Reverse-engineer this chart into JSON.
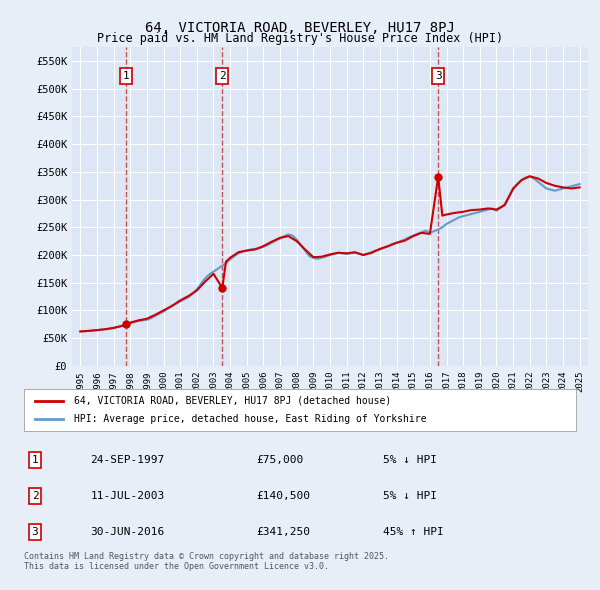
{
  "title": "64, VICTORIA ROAD, BEVERLEY, HU17 8PJ",
  "subtitle": "Price paid vs. HM Land Registry's House Price Index (HPI)",
  "legend_property": "64, VICTORIA ROAD, BEVERLEY, HU17 8PJ (detached house)",
  "legend_hpi": "HPI: Average price, detached house, East Riding of Yorkshire",
  "footer": "Contains HM Land Registry data © Crown copyright and database right 2025.\nThis data is licensed under the Open Government Licence v3.0.",
  "transactions": [
    {
      "num": 1,
      "date": "24-SEP-1997",
      "price": 75000,
      "pct": "5%",
      "dir": "↓",
      "year": 1997.73
    },
    {
      "num": 2,
      "date": "11-JUL-2003",
      "price": 140500,
      "pct": "5%",
      "dir": "↓",
      "year": 2003.53
    },
    {
      "num": 3,
      "date": "30-JUN-2016",
      "price": 341250,
      "pct": "45%",
      "dir": "↑",
      "year": 2016.5
    }
  ],
  "hpi_data": {
    "years": [
      1995.0,
      1995.25,
      1995.5,
      1995.75,
      1996.0,
      1996.25,
      1996.5,
      1996.75,
      1997.0,
      1997.25,
      1997.5,
      1997.75,
      1998.0,
      1998.25,
      1998.5,
      1998.75,
      1999.0,
      1999.25,
      1999.5,
      1999.75,
      2000.0,
      2000.25,
      2000.5,
      2000.75,
      2001.0,
      2001.25,
      2001.5,
      2001.75,
      2002.0,
      2002.25,
      2002.5,
      2002.75,
      2003.0,
      2003.25,
      2003.5,
      2003.75,
      2004.0,
      2004.25,
      2004.5,
      2004.75,
      2005.0,
      2005.25,
      2005.5,
      2005.75,
      2006.0,
      2006.25,
      2006.5,
      2006.75,
      2007.0,
      2007.25,
      2007.5,
      2007.75,
      2008.0,
      2008.25,
      2008.5,
      2008.75,
      2009.0,
      2009.25,
      2009.5,
      2009.75,
      2010.0,
      2010.25,
      2010.5,
      2010.75,
      2011.0,
      2011.25,
      2011.5,
      2011.75,
      2012.0,
      2012.25,
      2012.5,
      2012.75,
      2013.0,
      2013.25,
      2013.5,
      2013.75,
      2014.0,
      2014.25,
      2014.5,
      2014.75,
      2015.0,
      2015.25,
      2015.5,
      2015.75,
      2016.0,
      2016.25,
      2016.5,
      2016.75,
      2017.0,
      2017.25,
      2017.5,
      2017.75,
      2018.0,
      2018.25,
      2018.5,
      2018.75,
      2019.0,
      2019.25,
      2019.5,
      2019.75,
      2020.0,
      2020.25,
      2020.5,
      2020.75,
      2021.0,
      2021.25,
      2021.5,
      2021.75,
      2022.0,
      2022.25,
      2022.5,
      2022.75,
      2023.0,
      2023.25,
      2023.5,
      2023.75,
      2024.0,
      2024.25,
      2024.5,
      2024.75,
      2025.0
    ],
    "values": [
      62000,
      62500,
      63000,
      63500,
      64000,
      65000,
      66000,
      67000,
      68000,
      70000,
      72000,
      74500,
      77000,
      79000,
      81000,
      82000,
      83000,
      86000,
      90000,
      94000,
      98000,
      103000,
      108000,
      112000,
      116000,
      120000,
      124000,
      130000,
      138000,
      148000,
      158000,
      165000,
      170000,
      175000,
      180000,
      185000,
      192000,
      198000,
      203000,
      206000,
      208000,
      210000,
      211000,
      212000,
      215000,
      218000,
      222000,
      226000,
      230000,
      234000,
      237000,
      235000,
      228000,
      218000,
      208000,
      198000,
      195000,
      193000,
      195000,
      197000,
      200000,
      202000,
      204000,
      203000,
      202000,
      203000,
      204000,
      202000,
      200000,
      202000,
      205000,
      208000,
      210000,
      213000,
      216000,
      220000,
      222000,
      225000,
      228000,
      232000,
      235000,
      238000,
      241000,
      244000,
      240000,
      243000,
      246000,
      250000,
      256000,
      260000,
      264000,
      268000,
      270000,
      272000,
      274000,
      276000,
      278000,
      280000,
      282000,
      284000,
      280000,
      285000,
      292000,
      305000,
      318000,
      328000,
      335000,
      340000,
      342000,
      338000,
      332000,
      326000,
      320000,
      318000,
      316000,
      318000,
      320000,
      322000,
      324000,
      326000,
      328000
    ]
  },
  "property_data": {
    "years": [
      1995.0,
      1995.5,
      1996.0,
      1996.5,
      1997.0,
      1997.5,
      1997.73,
      1997.9,
      1998.0,
      1998.5,
      1999.0,
      1999.5,
      2000.0,
      2000.5,
      2001.0,
      2001.5,
      2002.0,
      2002.5,
      2003.0,
      2003.53,
      2003.75,
      2004.0,
      2004.5,
      2005.0,
      2005.5,
      2006.0,
      2006.5,
      2007.0,
      2007.5,
      2008.0,
      2008.5,
      2009.0,
      2009.5,
      2010.0,
      2010.5,
      2011.0,
      2011.5,
      2012.0,
      2012.5,
      2013.0,
      2013.5,
      2014.0,
      2014.5,
      2015.0,
      2015.5,
      2016.0,
      2016.5,
      2016.75,
      2017.0,
      2017.5,
      2018.0,
      2018.5,
      2019.0,
      2019.5,
      2020.0,
      2020.5,
      2021.0,
      2021.5,
      2022.0,
      2022.5,
      2023.0,
      2023.5,
      2024.0,
      2024.5,
      2025.0
    ],
    "values": [
      62000,
      63000,
      64500,
      66000,
      68500,
      72000,
      75000,
      76000,
      78000,
      82000,
      85000,
      92000,
      100000,
      108000,
      118000,
      126000,
      136000,
      152000,
      166000,
      140500,
      188000,
      195000,
      205000,
      208000,
      210000,
      216000,
      224000,
      231000,
      234000,
      225000,
      210000,
      196000,
      197000,
      201000,
      204000,
      203000,
      205000,
      200000,
      204000,
      211000,
      216000,
      222000,
      226000,
      234000,
      240000,
      238000,
      341250,
      271000,
      273000,
      276000,
      278000,
      281000,
      282000,
      284000,
      282000,
      290000,
      320000,
      335000,
      342000,
      338000,
      330000,
      325000,
      322000,
      320000,
      322000
    ]
  },
  "ylim": [
    0,
    575000
  ],
  "xlim": [
    1994.5,
    2025.5
  ],
  "yticks": [
    0,
    50000,
    100000,
    150000,
    200000,
    250000,
    300000,
    350000,
    400000,
    450000,
    500000,
    550000
  ],
  "ytick_labels": [
    "£0",
    "£50K",
    "£100K",
    "£150K",
    "£200K",
    "£250K",
    "£300K",
    "£350K",
    "£400K",
    "£450K",
    "£500K",
    "£550K"
  ],
  "xticks": [
    1995,
    1996,
    1997,
    1998,
    1999,
    2000,
    2001,
    2002,
    2003,
    2004,
    2005,
    2006,
    2007,
    2008,
    2009,
    2010,
    2011,
    2012,
    2013,
    2014,
    2015,
    2016,
    2017,
    2018,
    2019,
    2020,
    2021,
    2022,
    2023,
    2024,
    2025
  ],
  "bg_color": "#e8eef8",
  "plot_bg_color": "#dce6f5",
  "grid_color": "#ffffff",
  "red_line_color": "#cc0000",
  "blue_line_color": "#6699cc",
  "marker_box_color": "#cc0000",
  "vline_color": "#cc4444"
}
